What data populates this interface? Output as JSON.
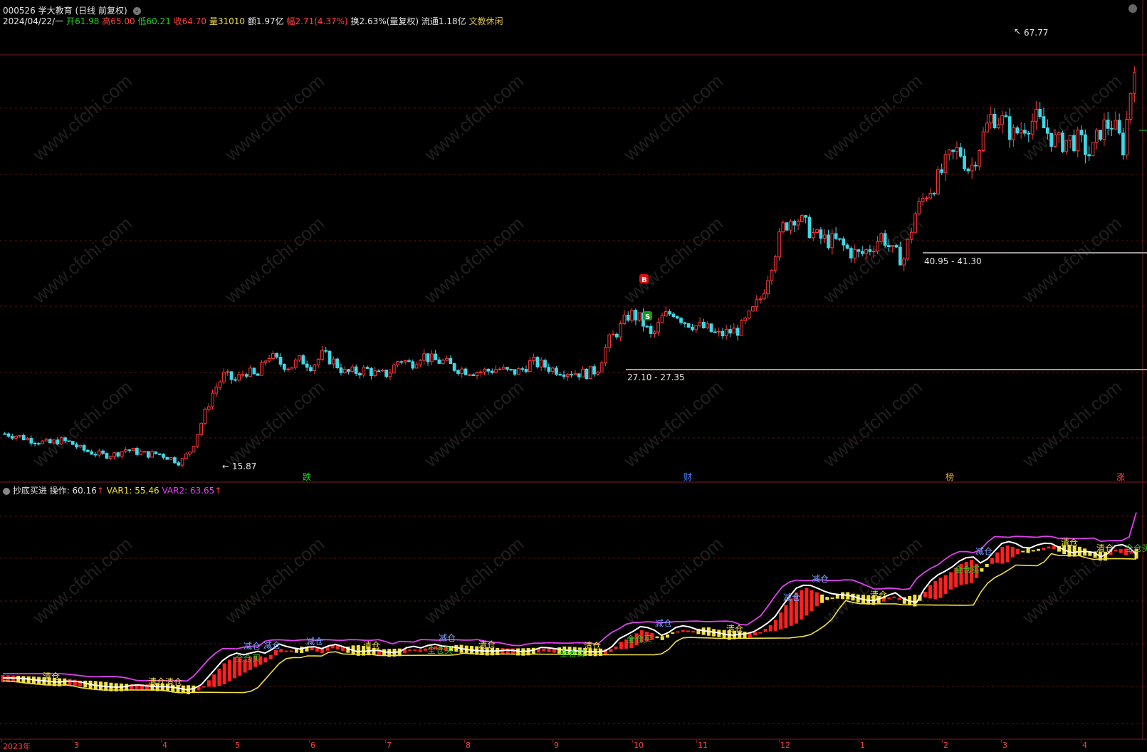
{
  "stock": {
    "code": "000526",
    "name": "学大教育",
    "mode": "(日线 前复权)"
  },
  "quote": {
    "date": "2024/04/22/一",
    "open_label": "开",
    "open": "61.98",
    "high_label": "高",
    "high": "65.00",
    "low_label": "低",
    "low": "60.21",
    "close_label": "收",
    "close": "64.70",
    "vol_label": "量",
    "volume": "31010",
    "amount_label": "额",
    "amount": "1.97亿",
    "change_label": "幅",
    "change": "2.71(4.37%)",
    "turnover_label": "换",
    "turnover": "2.63%(量复权)",
    "float_label": "流通",
    "float": "1.18亿",
    "sector": "文教休闲"
  },
  "annotations": {
    "high_mark": "67.77",
    "low_mark": "15.87",
    "range1": "27.10 - 27.35",
    "range2": "40.95 - 41.30",
    "buy_badge": "B",
    "sell_badge": "S"
  },
  "events": [
    {
      "label": "跌",
      "color": "#20d020"
    },
    {
      "label": "财",
      "color": "#4080ff"
    },
    {
      "label": "榜",
      "color": "#e0a040"
    },
    {
      "label": "涨",
      "color": "#ff4040"
    }
  ],
  "indicator": {
    "name": "抄底买进",
    "op_label": "操作: 60.16",
    "var1_label": "VAR1: 55.46",
    "var2_label": "VAR2: 63.65",
    "signals": {
      "qingcang": "清仓",
      "jiancang": "减仓",
      "quancangmai": "全仓买"
    }
  },
  "x_axis": [
    "2023年",
    "3",
    "4",
    "5",
    "6",
    "7",
    "8",
    "9",
    "10",
    "11",
    "12",
    "1",
    "2",
    "3",
    "4"
  ],
  "watermark": "www.cfchi.com",
  "colors": {
    "up": "#ff3a3a",
    "down": "#40d8e8",
    "grid": "#5a1414",
    "var2": "#e040f0",
    "var1": "#f0e040",
    "op": "#ffffff",
    "bar": "#ff2020"
  },
  "chart_data": {
    "type": "candlestick",
    "price_points": [
      [
        0,
        15.87
      ],
      [
        0.05,
        19.5
      ],
      [
        0.1,
        19
      ],
      [
        0.2,
        17
      ],
      [
        0.2,
        16
      ],
      [
        0.3,
        15.9
      ],
      [
        0.33,
        20
      ],
      [
        0.36,
        26
      ],
      [
        0.45,
        28.5
      ],
      [
        0.5,
        27.5
      ],
      [
        0.6,
        28
      ],
      [
        0.7,
        27.3
      ],
      [
        0.75,
        27.2
      ],
      [
        0.78,
        27.1
      ],
      [
        0.8,
        27.3
      ],
      [
        0.82,
        34
      ],
      [
        0.84,
        37
      ],
      [
        0.86,
        34
      ],
      [
        0.88,
        37
      ],
      [
        0.9,
        39
      ],
      [
        0.92,
        39.5
      ],
      [
        0.95,
        41
      ],
      [
        1.0,
        40
      ]
    ],
    "closing_series": [
      19.4,
      19.2,
      18.8,
      18.5,
      18.2,
      18.6,
      18.3,
      17.5,
      17.1,
      16.8,
      16.9,
      17.5,
      17.2,
      16.9,
      17.0,
      16.5,
      15.9,
      17.5,
      21.0,
      24.5,
      26.5,
      25.8,
      27.0,
      26.2,
      29.0,
      28.0,
      27.5,
      28.4,
      27.6,
      29.0,
      28.1,
      26.8,
      26.9,
      27.2,
      26.5,
      26.7,
      28.5,
      27.8,
      29.0,
      28.3,
      28.1,
      27.4,
      27.1,
      26.9,
      27.0,
      27.3,
      26.8,
      27.0,
      28.1,
      27.7,
      27.2,
      27.0,
      26.8,
      26.7,
      27.1,
      30.5,
      32.0,
      34.0,
      33.2,
      31.0,
      33.5,
      34.2,
      33.0,
      32.5,
      32.1,
      31.3,
      31.7,
      32.0,
      33.8,
      36.0,
      40.5,
      44.5,
      45.8,
      44.6,
      43.2,
      42.8,
      42.6,
      41.5,
      41.0,
      42.0,
      43.5,
      41.2,
      40.6,
      46.0,
      48.5,
      50.0,
      52.5,
      53.8,
      51.2,
      54.8,
      58.0,
      57.2,
      55.5,
      56.8,
      57.5,
      56.0,
      54.5,
      55.0,
      54.8,
      53.0,
      56.5,
      57.0,
      54.0,
      64.7
    ]
  }
}
